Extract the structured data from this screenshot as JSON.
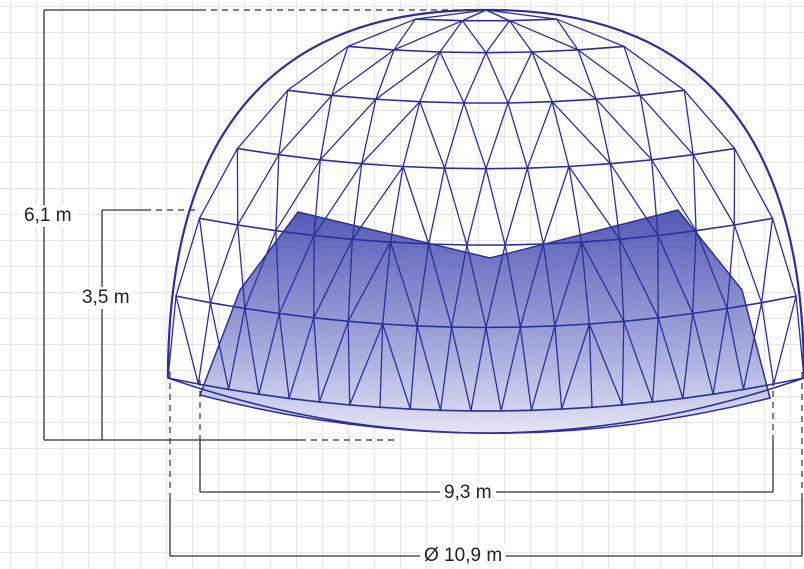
{
  "dimensions": {
    "total_height": "6,1 m",
    "wall_height": "3,5 m",
    "inner_width": "9,3 m",
    "diameter": "Ø 10,9 m"
  },
  "colors": {
    "frame": "#2b2f9a",
    "fill_top": "#4a4fb0",
    "fill_bottom": "#e2e3f4",
    "dimension_line": "#333333"
  }
}
